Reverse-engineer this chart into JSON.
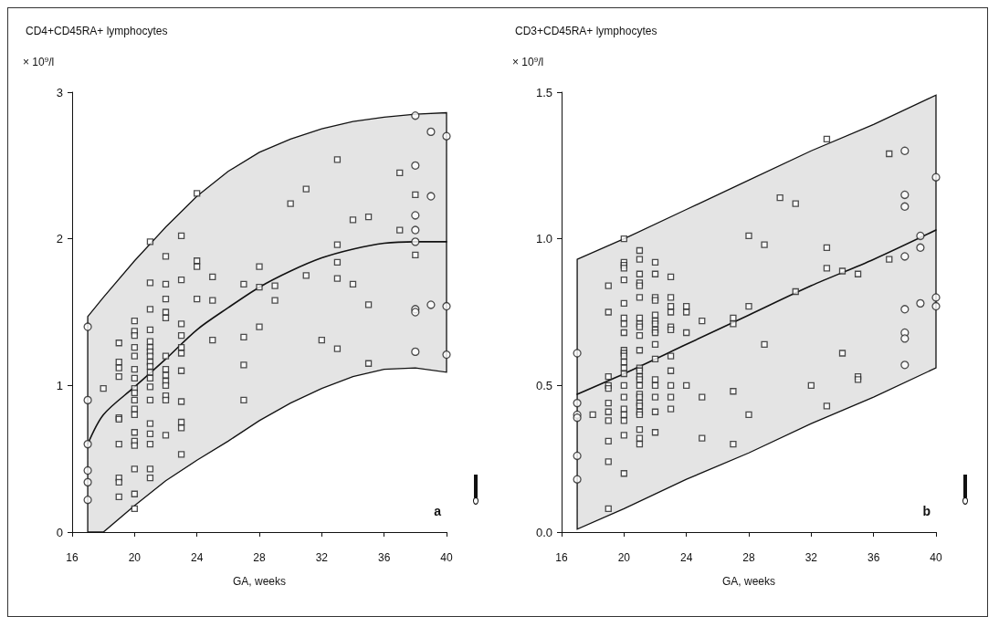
{
  "chart_data": [
    {
      "type": "scatter",
      "title": "CD4+CD45RA+ lymphocytes",
      "ylabel": "× 10$^{9}$/l",
      "xlabel": "GA, weeks",
      "annotations": [
        "a"
      ],
      "xlim": [
        16,
        40
      ],
      "xticks": [
        16,
        20,
        24,
        28,
        32,
        36,
        40
      ],
      "ylim": [
        0,
        3
      ],
      "yticks": [
        0,
        1,
        2,
        3
      ],
      "grid": false,
      "series": [
        {
          "marker": "square",
          "color": "#222222",
          "x": [
            18,
            19,
            19,
            19,
            19,
            19,
            19,
            19,
            19,
            19,
            19,
            20,
            20,
            20,
            20,
            20,
            20,
            20,
            20,
            20,
            20,
            20,
            20,
            20,
            20,
            20,
            20,
            20,
            20,
            21,
            21,
            21,
            21,
            21,
            21,
            21,
            21,
            21,
            21,
            21,
            21,
            21,
            21,
            21,
            21,
            21,
            21,
            21,
            22,
            22,
            22,
            22,
            22,
            22,
            22,
            22,
            22,
            22,
            22,
            22,
            22,
            23,
            23,
            23,
            23,
            23,
            23,
            23,
            23,
            23,
            23,
            23,
            24,
            24,
            24,
            24,
            25,
            25,
            25,
            27,
            27,
            27,
            27,
            28,
            28,
            28,
            29,
            29,
            30,
            31,
            31,
            32,
            33,
            33,
            33,
            33,
            33,
            34,
            34,
            35,
            35,
            35,
            37,
            37,
            38,
            38
          ],
          "values": [
            0.98,
            1.29,
            1.16,
            1.12,
            1.06,
            0.78,
            0.77,
            0.6,
            0.37,
            0.34,
            0.24,
            1.44,
            1.37,
            1.34,
            1.26,
            1.2,
            1.11,
            1.05,
            0.98,
            0.95,
            0.9,
            0.84,
            0.8,
            0.68,
            0.62,
            0.59,
            0.43,
            0.26,
            0.16,
            1.98,
            1.7,
            1.52,
            1.38,
            1.3,
            1.26,
            1.23,
            1.2,
            1.16,
            1.13,
            1.09,
            1.05,
            0.99,
            0.9,
            0.74,
            0.67,
            0.6,
            0.43,
            0.37,
            1.88,
            1.69,
            1.59,
            1.5,
            1.46,
            1.2,
            1.11,
            1.07,
            1.03,
            1.0,
            0.93,
            0.9,
            0.66,
            2.02,
            1.72,
            1.42,
            1.34,
            1.26,
            1.22,
            1.1,
            0.89,
            0.75,
            0.71,
            0.53,
            2.31,
            1.85,
            1.81,
            1.59,
            1.74,
            1.58,
            1.31,
            1.69,
            1.33,
            1.14,
            0.9,
            1.81,
            1.67,
            1.4,
            1.68,
            1.58,
            2.24,
            2.34,
            1.75,
            1.31,
            2.54,
            1.96,
            1.84,
            1.73,
            1.25,
            2.13,
            1.69,
            2.15,
            1.55,
            1.15,
            2.45,
            2.06,
            2.3,
            1.89
          ]
        },
        {
          "marker": "circle",
          "color": "#222222",
          "x": [
            17,
            17,
            17,
            17,
            17,
            17,
            38,
            38,
            38,
            38,
            38,
            38,
            38,
            38,
            39,
            39,
            39,
            40,
            40,
            40
          ],
          "values": [
            1.4,
            0.9,
            0.6,
            0.42,
            0.34,
            0.22,
            2.84,
            2.5,
            2.16,
            2.06,
            1.98,
            1.52,
            1.5,
            1.23,
            2.73,
            2.29,
            1.55,
            2.7,
            1.54,
            1.21
          ]
        },
        {
          "type": "line",
          "color": "#111111",
          "x": [
            17,
            18,
            20,
            22,
            24,
            26,
            28,
            30,
            32,
            34,
            36,
            38,
            40
          ],
          "values": [
            0.6,
            0.8,
            0.99,
            1.18,
            1.38,
            1.53,
            1.67,
            1.78,
            1.87,
            1.93,
            1.97,
            1.98,
            1.98
          ],
          "lower": [
            0,
            0,
            0.18,
            0.35,
            0.49,
            0.62,
            0.76,
            0.88,
            0.98,
            1.06,
            1.11,
            1.12,
            1.09
          ],
          "upper": [
            1.47,
            1.6,
            1.85,
            2.08,
            2.29,
            2.46,
            2.59,
            2.68,
            2.75,
            2.8,
            2.83,
            2.85,
            2.86
          ]
        }
      ]
    },
    {
      "type": "scatter",
      "title": "CD3+CD45RA+ lymphocytes",
      "ylabel": "× 10$^{9}$/l",
      "xlabel": "GA, weeks",
      "annotations": [
        "b"
      ],
      "xlim": [
        16,
        40
      ],
      "xticks": [
        16,
        20,
        24,
        28,
        32,
        36,
        40
      ],
      "ylim": [
        0,
        1.5
      ],
      "yticks": [
        {
          "value": 0,
          "label": "0.0"
        },
        {
          "value": 0.5,
          "label": "0.5"
        },
        {
          "value": 1,
          "label": "1.0"
        },
        {
          "value": 1.5,
          "label": "1.5"
        }
      ],
      "grid": false,
      "series": [
        {
          "marker": "square",
          "color": "#222222",
          "x": [
            18,
            19,
            19,
            19,
            19,
            19,
            19,
            19,
            19,
            19,
            19,
            19,
            20,
            20,
            20,
            20,
            20,
            20,
            20,
            20,
            20,
            20,
            20,
            20,
            20,
            20,
            20,
            20,
            20,
            20,
            20,
            20,
            20,
            20,
            21,
            21,
            21,
            21,
            21,
            21,
            21,
            21,
            21,
            21,
            21,
            21,
            21,
            21,
            21,
            21,
            21,
            21,
            21,
            21,
            21,
            21,
            21,
            21,
            21,
            22,
            22,
            22,
            22,
            22,
            22,
            22,
            22,
            22,
            22,
            22,
            22,
            22,
            22,
            22,
            22,
            23,
            23,
            23,
            23,
            23,
            23,
            23,
            23,
            23,
            23,
            23,
            24,
            24,
            24,
            24,
            25,
            25,
            25,
            27,
            27,
            27,
            27,
            28,
            28,
            28,
            29,
            29,
            30,
            31,
            31,
            32,
            33,
            33,
            33,
            33,
            34,
            34,
            35,
            35,
            35,
            37,
            37
          ],
          "values": [
            0.4,
            0.84,
            0.75,
            0.53,
            0.5,
            0.49,
            0.44,
            0.41,
            0.38,
            0.31,
            0.24,
            0.08,
            1.0,
            0.92,
            0.91,
            0.9,
            0.86,
            0.78,
            0.73,
            0.71,
            0.68,
            0.62,
            0.61,
            0.6,
            0.58,
            0.56,
            0.54,
            0.5,
            0.46,
            0.42,
            0.4,
            0.38,
            0.33,
            0.2,
            0.96,
            0.93,
            0.88,
            0.85,
            0.84,
            0.8,
            0.73,
            0.71,
            0.7,
            0.67,
            0.62,
            0.56,
            0.55,
            0.53,
            0.52,
            0.5,
            0.47,
            0.46,
            0.44,
            0.43,
            0.41,
            0.4,
            0.35,
            0.32,
            0.3,
            0.92,
            0.88,
            0.8,
            0.79,
            0.74,
            0.72,
            0.71,
            0.69,
            0.68,
            0.64,
            0.59,
            0.52,
            0.5,
            0.46,
            0.41,
            0.34,
            0.87,
            0.8,
            0.77,
            0.75,
            0.7,
            0.69,
            0.6,
            0.55,
            0.5,
            0.46,
            0.42,
            0.77,
            0.75,
            0.68,
            0.5,
            0.72,
            0.46,
            0.32,
            0.73,
            0.71,
            0.48,
            0.3,
            1.01,
            0.77,
            0.4,
            0.98,
            0.64,
            1.14,
            1.12,
            0.82,
            0.5,
            1.34,
            0.97,
            0.9,
            0.43,
            0.89,
            0.61,
            0.88,
            0.53,
            0.52,
            1.29,
            0.93
          ]
        },
        {
          "marker": "circle",
          "color": "#222222",
          "x": [
            17,
            17,
            17,
            17,
            17,
            17,
            38,
            38,
            38,
            38,
            38,
            38,
            38,
            38,
            39,
            39,
            39,
            40,
            40,
            40
          ],
          "values": [
            0.61,
            0.44,
            0.4,
            0.39,
            0.26,
            0.18,
            1.3,
            1.15,
            1.11,
            0.94,
            0.76,
            0.68,
            0.66,
            0.57,
            1.01,
            0.97,
            0.78,
            1.21,
            0.8,
            0.77
          ]
        },
        {
          "type": "line",
          "color": "#111111",
          "x": [
            17,
            20,
            24,
            28,
            32,
            36,
            40
          ],
          "values": [
            0.47,
            0.54,
            0.64,
            0.74,
            0.84,
            0.93,
            1.03
          ],
          "lower": [
            0.01,
            0.08,
            0.18,
            0.27,
            0.37,
            0.46,
            0.56
          ],
          "upper": [
            0.93,
            1.0,
            1.1,
            1.2,
            1.3,
            1.39,
            1.49
          ]
        }
      ]
    }
  ]
}
